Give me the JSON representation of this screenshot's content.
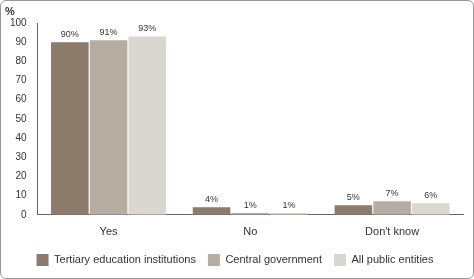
{
  "chart_data": {
    "type": "bar",
    "y_label": "%",
    "categories": [
      "Yes",
      "No",
      "Don't know"
    ],
    "series": [
      {
        "name": "Tertiary education institutions",
        "color": "#8c7a6b",
        "values": [
          90,
          4,
          5
        ],
        "value_labels": [
          "90%",
          "4%",
          "5%"
        ]
      },
      {
        "name": "Central government",
        "color": "#b5ada2",
        "values": [
          91,
          1,
          7
        ],
        "value_labels": [
          "91%",
          "1%",
          "7%"
        ]
      },
      {
        "name": "All public entities",
        "color": "#dad7d1",
        "values": [
          93,
          1,
          6
        ],
        "value_labels": [
          "93%",
          "1%",
          "6%"
        ]
      }
    ],
    "ylim": [
      0,
      100
    ],
    "yticks": [
      0,
      10,
      20,
      30,
      40,
      50,
      60,
      70,
      80,
      90,
      100
    ],
    "grid": false,
    "legend": "bottom",
    "data_labels": true
  }
}
